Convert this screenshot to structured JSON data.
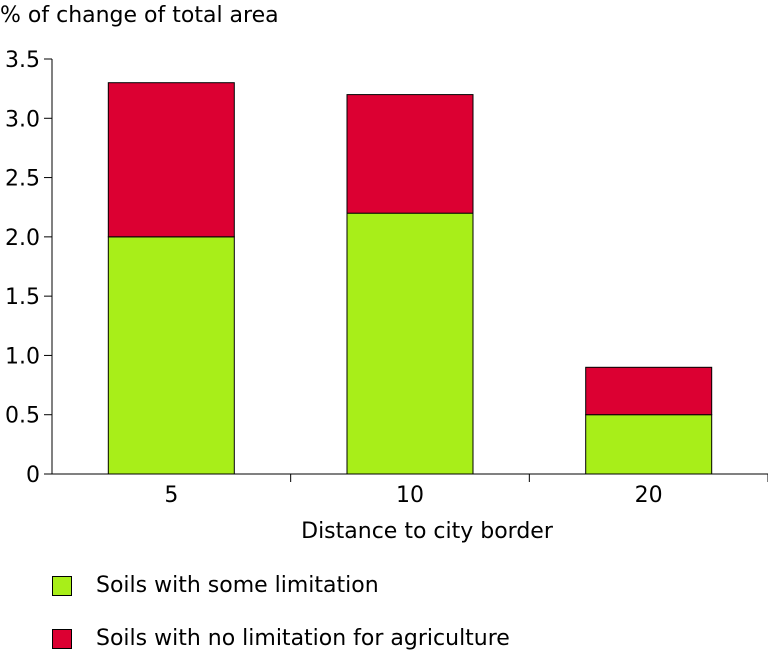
{
  "chart_data": {
    "type": "bar",
    "stacked": true,
    "ylabel": "% of change of total area",
    "xlabel": "Distance to city border",
    "categories": [
      "5",
      "10",
      "20"
    ],
    "series": [
      {
        "name": "Soils with some limitation",
        "color": "#a8ee19",
        "values": [
          2.0,
          2.2,
          0.5
        ]
      },
      {
        "name": "Soils with no limitation for agriculture",
        "color": "#dc0032",
        "values": [
          1.3,
          1.0,
          0.4
        ]
      }
    ],
    "ylim": [
      0,
      3.5
    ],
    "yticks": [
      "0",
      "0.5",
      "1.0",
      "1.5",
      "2.0",
      "2.5",
      "3.0",
      "3.5"
    ],
    "grid": false,
    "legend_position": "bottom"
  }
}
